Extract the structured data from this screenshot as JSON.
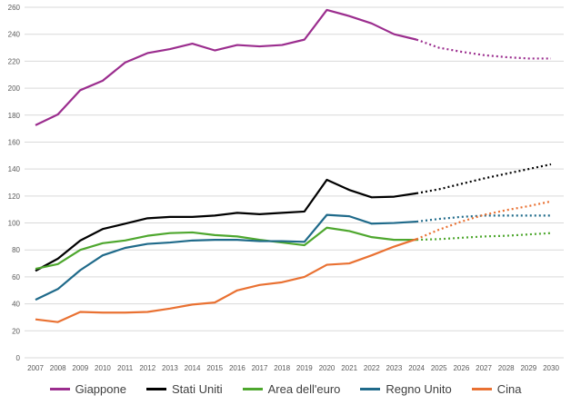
{
  "chart_data": {
    "type": "line",
    "title": "",
    "xlabel": "",
    "ylabel": "",
    "x": [
      2007,
      2008,
      2009,
      2010,
      2011,
      2012,
      2013,
      2014,
      2015,
      2016,
      2017,
      2018,
      2019,
      2020,
      2021,
      2022,
      2023,
      2024,
      2025,
      2026,
      2027,
      2028,
      2029,
      2030
    ],
    "ylim": [
      0,
      260
    ],
    "yticks": [
      0,
      20,
      40,
      60,
      80,
      100,
      120,
      140,
      160,
      180,
      200,
      220,
      240,
      260
    ],
    "grid": "horizontal",
    "legend_position": "bottom",
    "projection_style": "dotted from 2024 onward",
    "series": [
      {
        "name": "Giappone",
        "color": "#9B2D8E",
        "values": [
          172.5,
          180.5,
          198.5,
          205.5,
          219,
          226,
          229,
          233,
          228,
          232,
          231,
          232,
          236,
          258,
          253.5,
          248,
          240,
          236,
          230,
          227,
          224.5,
          223,
          222,
          222
        ]
      },
      {
        "name": "Stati Uniti",
        "color": "#000000",
        "values": [
          64.5,
          73.5,
          87,
          95.5,
          99.5,
          103.5,
          104.5,
          104.5,
          105.5,
          107.5,
          106.5,
          107.5,
          108.5,
          132,
          124.5,
          119,
          119.5,
          122,
          125,
          129,
          133,
          136.5,
          140,
          143.5
        ]
      },
      {
        "name": "Area dell'euro",
        "color": "#4EA72E",
        "values": [
          66,
          69.5,
          80,
          85,
          87,
          90.5,
          92.5,
          93,
          91,
          90,
          87.5,
          85.5,
          83.5,
          96.5,
          94,
          89.5,
          87.5,
          87.5,
          88,
          89,
          90,
          90.5,
          91.5,
          92.5
        ]
      },
      {
        "name": "Regno Unito",
        "color": "#1F6A8A",
        "values": [
          43,
          51,
          65,
          76,
          81.5,
          84.5,
          85.5,
          87,
          87.5,
          87.5,
          86.5,
          86.5,
          86,
          106,
          105,
          99.5,
          100,
          101,
          103,
          104.5,
          105.5,
          105.5,
          105.5,
          105.5
        ]
      },
      {
        "name": "Cina",
        "color": "#E97132",
        "values": [
          28.5,
          26.5,
          34,
          33.5,
          33.5,
          34,
          36.5,
          39.5,
          41,
          50,
          54,
          56,
          60,
          69,
          70,
          76,
          82.5,
          88,
          95,
          101,
          106,
          109.5,
          112.5,
          116
        ]
      }
    ]
  }
}
